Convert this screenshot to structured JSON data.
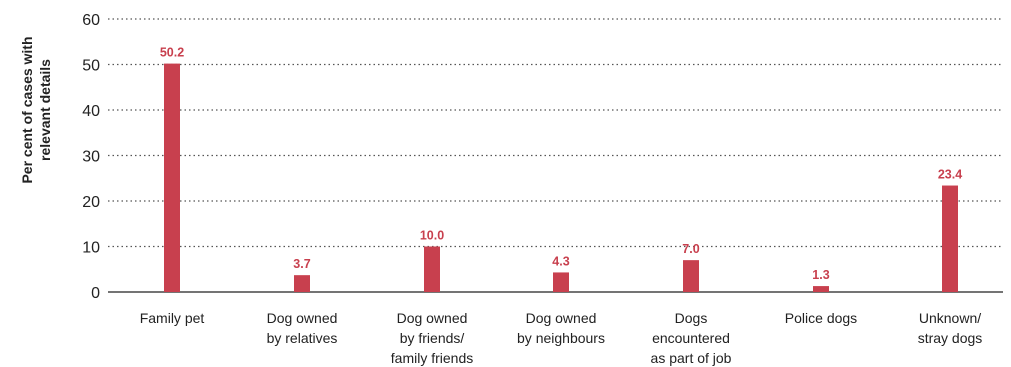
{
  "chart_data": {
    "type": "bar",
    "categories": [
      [
        "Family pet"
      ],
      [
        "Dog owned",
        "by relatives"
      ],
      [
        "Dog owned",
        "by friends/",
        "family friends"
      ],
      [
        "Dog owned",
        "by neighbours"
      ],
      [
        "Dogs",
        "encountered",
        "as part of job"
      ],
      [
        "Police dogs"
      ],
      [
        "Unknown/",
        "stray dogs"
      ]
    ],
    "values": [
      50.2,
      3.7,
      10.0,
      4.3,
      7.0,
      1.3,
      23.4
    ],
    "data_labels": [
      "50.2",
      "3.7",
      "10.0",
      "4.3",
      "7.0",
      "1.3",
      "23.4"
    ],
    "ylabel": [
      "Per cent of cases with",
      "relevant details"
    ],
    "ylim": [
      0,
      60
    ],
    "yticks": [
      0,
      10,
      20,
      30,
      40,
      50,
      60
    ],
    "grid": true,
    "legend": "none",
    "colors": {
      "bar": "#c8404e",
      "label": "#c8404e",
      "grid": "#555555",
      "axis": "#222222"
    }
  }
}
